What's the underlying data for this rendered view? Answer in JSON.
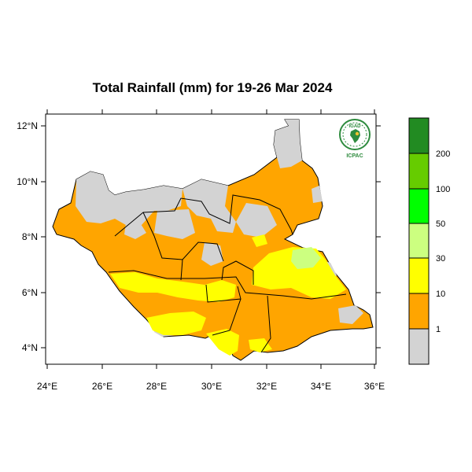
{
  "title": "Total Rainfall (mm) for 19-26 Mar 2024",
  "logo": {
    "top_text": "IGAD",
    "bottom_text": "ICPAC"
  },
  "axes": {
    "x_ticks": [
      "24°E",
      "26°E",
      "28°E",
      "30°E",
      "32°E",
      "34°E",
      "36°E"
    ],
    "y_ticks": [
      "12°N",
      "10°N",
      "8°N",
      "6°N",
      "4°N"
    ],
    "lon_range": [
      24,
      36
    ],
    "lat_range": [
      3.5,
      12.5
    ]
  },
  "legend": {
    "bins": [
      {
        "label": "1",
        "color": "#d3d3d3"
      },
      {
        "label": "10",
        "color": "#ffa500"
      },
      {
        "label": "30",
        "color": "#ffff00"
      },
      {
        "label": "50",
        "color": "#ccff80"
      },
      {
        "label": "100",
        "color": "#00ff00"
      },
      {
        "label": "200",
        "color": "#66cc00"
      },
      {
        "label": "",
        "color": "#228b22"
      }
    ]
  },
  "colors": {
    "no_rain": "#d3d3d3",
    "light": "#ffa500",
    "moderate": "#ffff00",
    "heavy": "#ccff80",
    "boundary": "#000000",
    "logo_green": "#2e8b3e"
  }
}
